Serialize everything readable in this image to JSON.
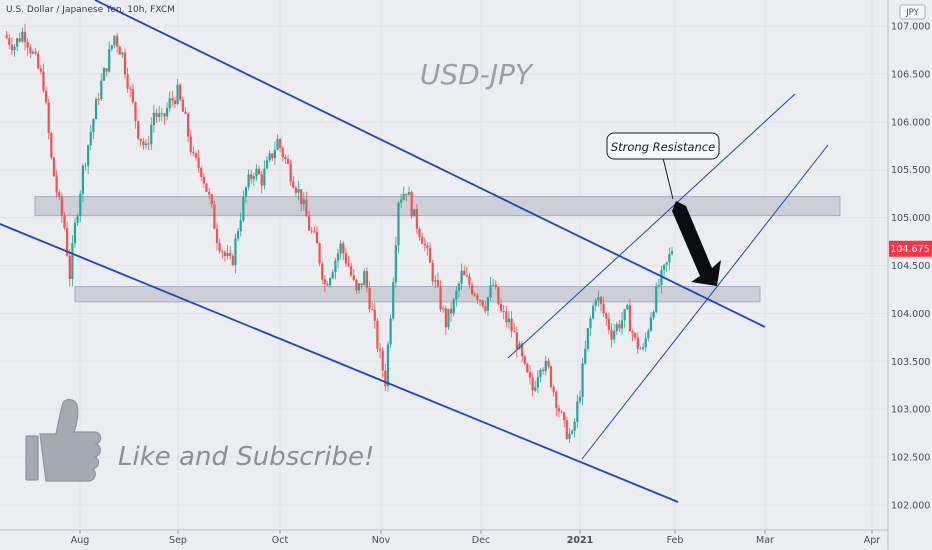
{
  "header": {
    "symbol_label": "U.S. Dollar / Japanese Yen, 10h, FXCM",
    "currency_badge": "JPY"
  },
  "watermark": {
    "title": "USD-JPY",
    "cta": "Like and Subscribe!",
    "cta_icon": "thumbs-up-icon"
  },
  "annotation": {
    "callout_text": "Strong Resistance"
  },
  "price_tag": {
    "value": "104.675",
    "color": "#f23645"
  },
  "colors": {
    "up_candle": "#26a69a",
    "down_candle": "#ef5350",
    "trendline": "#1548c6",
    "zone_fill": "#c7cad1"
  },
  "chart_data": {
    "type": "candlestick",
    "y_ticks": [
      "107.000",
      "106.500",
      "106.000",
      "105.500",
      "105.000",
      "104.500",
      "104.000",
      "103.500",
      "103.000",
      "102.500",
      "102.000"
    ],
    "x_ticks": [
      "Aug",
      "Sep",
      "Oct",
      "Nov",
      "Dec",
      "2021",
      "Feb",
      "Mar",
      "Apr"
    ],
    "ylim": [
      101.9,
      107.15
    ],
    "last_price": 104.675,
    "zones": [
      {
        "low": 105.02,
        "high": 105.22
      },
      {
        "low": 104.12,
        "high": 104.28
      }
    ],
    "close_path": [
      [
        0,
        106.9
      ],
      [
        8,
        106.8
      ],
      [
        15,
        106.95
      ],
      [
        22,
        106.7
      ],
      [
        30,
        106.4
      ],
      [
        36,
        105.6
      ],
      [
        41,
        105.2
      ],
      [
        46,
        104.9
      ],
      [
        50,
        104.4
      ],
      [
        54,
        104.9
      ],
      [
        60,
        105.5
      ],
      [
        66,
        105.9
      ],
      [
        72,
        106.3
      ],
      [
        78,
        106.6
      ],
      [
        84,
        106.9
      ],
      [
        90,
        106.7
      ],
      [
        96,
        106.3
      ],
      [
        102,
        105.9
      ],
      [
        108,
        105.7
      ],
      [
        114,
        106.1
      ],
      [
        120,
        106.0
      ],
      [
        126,
        106.2
      ],
      [
        132,
        106.3
      ],
      [
        138,
        106.0
      ],
      [
        144,
        105.6
      ],
      [
        150,
        105.5
      ],
      [
        156,
        105.2
      ],
      [
        162,
        104.8
      ],
      [
        168,
        104.6
      ],
      [
        173,
        104.5
      ],
      [
        178,
        104.9
      ],
      [
        184,
        105.3
      ],
      [
        190,
        105.5
      ],
      [
        196,
        105.4
      ],
      [
        202,
        105.6
      ],
      [
        208,
        105.8
      ],
      [
        214,
        105.6
      ],
      [
        220,
        105.4
      ],
      [
        226,
        105.2
      ],
      [
        232,
        104.9
      ],
      [
        238,
        104.7
      ],
      [
        244,
        104.3
      ],
      [
        250,
        104.5
      ],
      [
        256,
        104.7
      ],
      [
        262,
        104.5
      ],
      [
        268,
        104.2
      ],
      [
        274,
        104.4
      ],
      [
        280,
        104.0
      ],
      [
        285,
        103.6
      ],
      [
        290,
        103.3
      ],
      [
        295,
        104.2
      ],
      [
        300,
        105.2
      ],
      [
        306,
        105.3
      ],
      [
        312,
        105.0
      ],
      [
        318,
        104.8
      ],
      [
        324,
        104.5
      ],
      [
        330,
        104.2
      ],
      [
        336,
        103.9
      ],
      [
        342,
        104.1
      ],
      [
        348,
        104.4
      ],
      [
        354,
        104.3
      ],
      [
        360,
        104.2
      ],
      [
        366,
        104.1
      ],
      [
        372,
        104.3
      ],
      [
        378,
        104.0
      ],
      [
        384,
        103.9
      ],
      [
        390,
        103.7
      ],
      [
        396,
        103.4
      ],
      [
        402,
        103.2
      ],
      [
        408,
        103.5
      ],
      [
        414,
        103.4
      ],
      [
        420,
        103.1
      ],
      [
        426,
        102.8
      ],
      [
        432,
        102.7
      ],
      [
        438,
        103.2
      ],
      [
        444,
        103.8
      ],
      [
        450,
        104.2
      ],
      [
        456,
        104.0
      ],
      [
        462,
        103.8
      ],
      [
        468,
        103.9
      ],
      [
        474,
        104.0
      ],
      [
        480,
        103.7
      ],
      [
        486,
        103.6
      ],
      [
        492,
        104.0
      ],
      [
        498,
        104.3
      ],
      [
        504,
        104.5
      ],
      [
        508,
        104.675
      ]
    ]
  }
}
